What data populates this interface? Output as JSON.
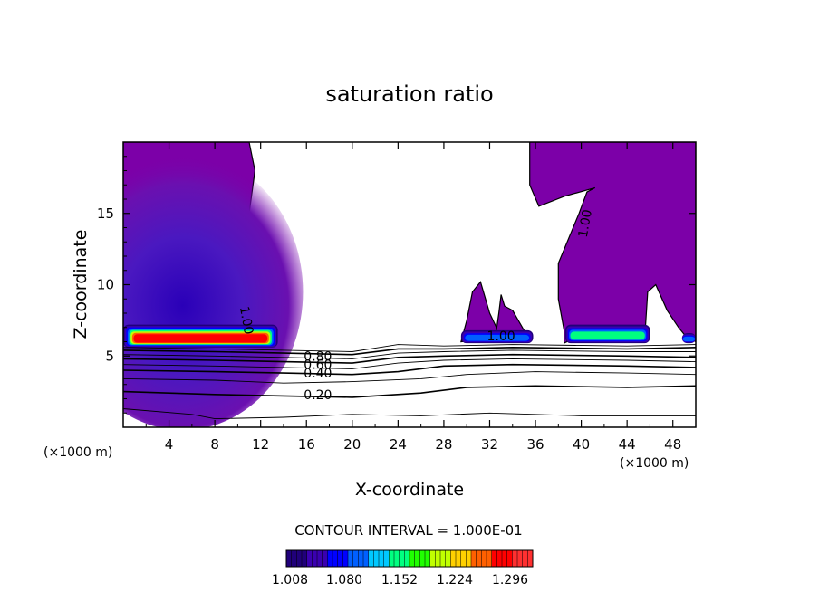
{
  "chart_data": {
    "type": "contour",
    "title": "saturation ratio",
    "xlabel": "X-coordinate",
    "ylabel": "Z-coordinate",
    "x_unit_label": "(×1000 m)",
    "xlim": [
      0,
      50
    ],
    "ylim": [
      0,
      20
    ],
    "x_ticks": [
      4,
      8,
      12,
      16,
      20,
      24,
      28,
      32,
      36,
      40,
      44,
      48
    ],
    "y_ticks": [
      5,
      10,
      15
    ],
    "contour_interval_text": "CONTOUR INTERVAL = 1.000E-01",
    "contour_labels": [
      {
        "text": "1.00",
        "x": 10.8,
        "y": 7.5
      },
      {
        "text": "1.00",
        "x": 40.3,
        "y": 14.3
      },
      {
        "text": "1.00",
        "x": 33.0,
        "y": 6.4
      },
      {
        "text": "0.80",
        "x": 17.0,
        "y": 5.0
      },
      {
        "text": "0.60",
        "x": 17.0,
        "y": 4.4
      },
      {
        "text": "0.40",
        "x": 17.0,
        "y": 3.8
      },
      {
        "text": "0.20",
        "x": 17.0,
        "y": 2.3
      }
    ],
    "contour_lines": [
      {
        "level": 0.1,
        "points": [
          [
            0,
            1.3
          ],
          [
            6,
            0.9
          ],
          [
            8,
            0.6
          ],
          [
            14,
            0.7
          ],
          [
            20,
            0.9
          ],
          [
            26,
            0.8
          ],
          [
            32,
            1.0
          ],
          [
            40,
            0.8
          ],
          [
            50,
            0.8
          ]
        ]
      },
      {
        "level": 0.2,
        "points": [
          [
            0,
            2.5
          ],
          [
            8,
            2.3
          ],
          [
            14,
            2.2
          ],
          [
            20,
            2.1
          ],
          [
            26,
            2.4
          ],
          [
            30,
            2.8
          ],
          [
            36,
            2.9
          ],
          [
            44,
            2.8
          ],
          [
            50,
            2.9
          ]
        ]
      },
      {
        "level": 0.3,
        "points": [
          [
            0,
            3.4
          ],
          [
            8,
            3.3
          ],
          [
            14,
            3.1
          ],
          [
            20,
            3.2
          ],
          [
            26,
            3.4
          ],
          [
            30,
            3.7
          ],
          [
            36,
            3.9
          ],
          [
            44,
            3.8
          ],
          [
            50,
            3.7
          ]
        ]
      },
      {
        "level": 0.4,
        "points": [
          [
            0,
            4.0
          ],
          [
            8,
            3.9
          ],
          [
            14,
            3.8
          ],
          [
            20,
            3.7
          ],
          [
            24,
            3.9
          ],
          [
            28,
            4.3
          ],
          [
            34,
            4.4
          ],
          [
            44,
            4.3
          ],
          [
            50,
            4.2
          ]
        ]
      },
      {
        "level": 0.5,
        "points": [
          [
            0,
            4.4
          ],
          [
            8,
            4.3
          ],
          [
            14,
            4.2
          ],
          [
            20,
            4.1
          ],
          [
            24,
            4.5
          ],
          [
            28,
            4.7
          ],
          [
            34,
            4.8
          ],
          [
            44,
            4.7
          ],
          [
            50,
            4.6
          ]
        ]
      },
      {
        "level": 0.6,
        "points": [
          [
            0,
            4.8
          ],
          [
            8,
            4.7
          ],
          [
            14,
            4.6
          ],
          [
            20,
            4.5
          ],
          [
            24,
            4.9
          ],
          [
            28,
            5.0
          ],
          [
            34,
            5.1
          ],
          [
            44,
            5.0
          ],
          [
            50,
            4.9
          ]
        ]
      },
      {
        "level": 0.7,
        "points": [
          [
            0,
            5.1
          ],
          [
            8,
            5.0
          ],
          [
            14,
            4.9
          ],
          [
            20,
            4.8
          ],
          [
            24,
            5.2
          ],
          [
            28,
            5.3
          ],
          [
            34,
            5.4
          ],
          [
            44,
            5.3
          ],
          [
            50,
            5.3
          ]
        ]
      },
      {
        "level": 0.8,
        "points": [
          [
            0,
            5.4
          ],
          [
            8,
            5.3
          ],
          [
            14,
            5.2
          ],
          [
            20,
            5.1
          ],
          [
            24,
            5.5
          ],
          [
            28,
            5.5
          ],
          [
            34,
            5.6
          ],
          [
            44,
            5.5
          ],
          [
            50,
            5.6
          ]
        ]
      },
      {
        "level": 0.9,
        "points": [
          [
            0,
            5.6
          ],
          [
            8,
            5.5
          ],
          [
            14,
            5.4
          ],
          [
            20,
            5.3
          ],
          [
            24,
            5.8
          ],
          [
            28,
            5.7
          ],
          [
            34,
            5.8
          ],
          [
            44,
            5.7
          ],
          [
            50,
            5.8
          ]
        ]
      }
    ],
    "saturated_regions": [
      {
        "name": "left-cloud",
        "outline": [
          [
            0,
            5.6
          ],
          [
            13.5,
            5.6
          ],
          [
            12,
            6.2
          ],
          [
            10.7,
            6.3
          ],
          [
            10.5,
            12
          ],
          [
            11,
            15
          ],
          [
            11.5,
            18
          ],
          [
            11,
            20
          ],
          [
            0,
            20
          ]
        ]
      },
      {
        "name": "right-cloud",
        "outline": [
          [
            50,
            6.0
          ],
          [
            49.2,
            6.3
          ],
          [
            48.5,
            7.0
          ],
          [
            47.5,
            8.2
          ],
          [
            46.5,
            10
          ],
          [
            45.8,
            9.5
          ],
          [
            45.6,
            7.0
          ],
          [
            45,
            6.6
          ],
          [
            43.5,
            6.9
          ],
          [
            39.8,
            6.4
          ],
          [
            38.5,
            5.9
          ],
          [
            38.5,
            6.6
          ],
          [
            38.5,
            6.8
          ],
          [
            38,
            9
          ],
          [
            38,
            11.5
          ],
          [
            39.8,
            15
          ],
          [
            40.5,
            16.5
          ],
          [
            41.2,
            16.8
          ],
          [
            38.5,
            16.2
          ],
          [
            36.3,
            15.5
          ],
          [
            35.5,
            17
          ],
          [
            35.5,
            20
          ],
          [
            50,
            20
          ]
        ]
      },
      {
        "name": "middle-cell-a",
        "outline": [
          [
            29.5,
            6.0
          ],
          [
            30,
            7.5
          ],
          [
            30.5,
            9.5
          ],
          [
            31.2,
            10.2
          ],
          [
            32,
            8
          ],
          [
            33,
            6.3
          ]
        ]
      },
      {
        "name": "middle-cell-b",
        "outline": [
          [
            32.5,
            6.3
          ],
          [
            32.8,
            8
          ],
          [
            33,
            9.3
          ],
          [
            33.3,
            8.5
          ],
          [
            34,
            8.2
          ],
          [
            34.5,
            7.5
          ],
          [
            35,
            6.8
          ],
          [
            35.5,
            6.3
          ]
        ]
      }
    ],
    "supersaturated_patches": [
      {
        "x": [
          0,
          13.5
        ],
        "z": [
          5.6,
          7.2
        ],
        "max": 1.296
      },
      {
        "x": [
          29.5,
          35.8
        ],
        "z": [
          5.9,
          6.8
        ],
        "max": 1.08
      },
      {
        "x": [
          38.6,
          46
        ],
        "z": [
          5.9,
          7.2
        ],
        "max": 1.152
      },
      {
        "x": [
          48.8,
          50
        ],
        "z": [
          5.9,
          6.6
        ],
        "max": 1.08
      }
    ],
    "colorbar": {
      "ticks": [
        "1.008",
        "1.080",
        "1.152",
        "1.224",
        "1.296"
      ],
      "range": [
        1.0,
        1.33
      ],
      "colors": [
        "#20007a",
        "#3a00b0",
        "#0000ff",
        "#0060ff",
        "#00c8ff",
        "#00ff80",
        "#20ff00",
        "#c0ff00",
        "#ffd000",
        "#ff6000",
        "#ff0000",
        "#ff3030"
      ]
    },
    "fill_color": "#7c00a8"
  }
}
